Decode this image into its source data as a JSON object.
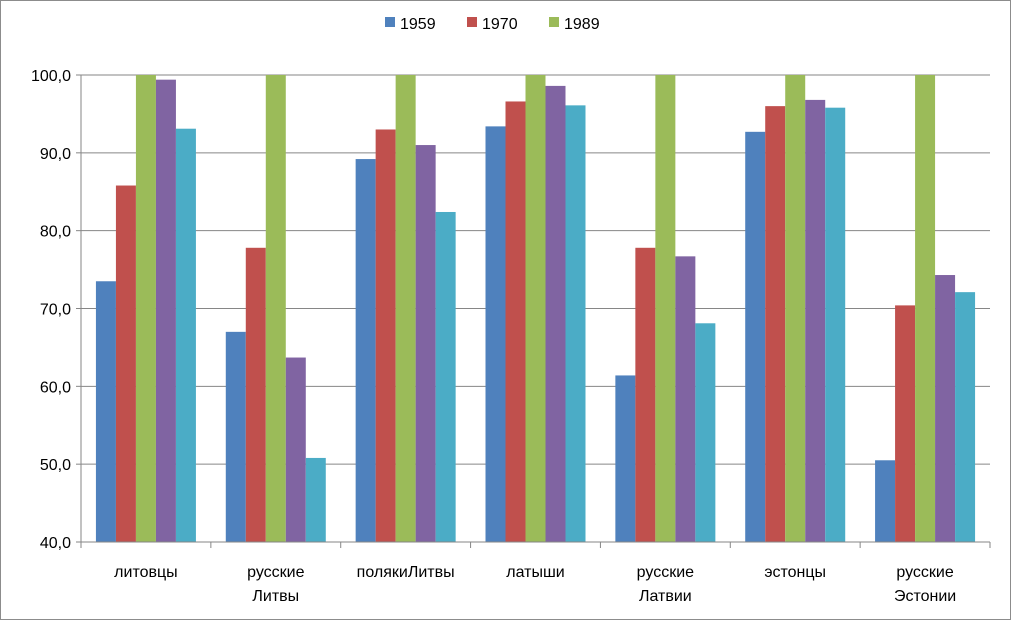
{
  "chart_data": {
    "type": "bar",
    "categories": [
      [
        "литовцы"
      ],
      [
        "русские",
        "Литвы"
      ],
      [
        "полякиЛитвы"
      ],
      [
        "латыши"
      ],
      [
        "русские",
        "Латвии"
      ],
      [
        "эстонцы"
      ],
      [
        "русские",
        "Эстонии"
      ]
    ],
    "series": [
      {
        "name": "1959",
        "color": "#4f81bd",
        "values": [
          73.5,
          67.0,
          89.2,
          93.4,
          61.4,
          92.7,
          50.5
        ]
      },
      {
        "name": "1970",
        "color": "#c0504d",
        "values": [
          85.8,
          77.8,
          93.0,
          96.6,
          77.8,
          96.0,
          70.4
        ]
      },
      {
        "name": "1989",
        "color": "#9bbb59",
        "values": [
          100.0,
          100.0,
          100.0,
          100.0,
          100.0,
          100.0,
          100.0
        ]
      },
      {
        "color": "#8064a2",
        "values": [
          99.4,
          63.7,
          91.0,
          98.6,
          76.7,
          96.8,
          74.3
        ]
      },
      {
        "color": "#4bacc6",
        "values": [
          93.1,
          50.8,
          82.4,
          96.1,
          68.1,
          95.8,
          72.1
        ]
      }
    ],
    "yticks": [
      "40,0",
      "50,0",
      "60,0",
      "70,0",
      "80,0",
      "90,0",
      "100,0"
    ],
    "ylim": [
      40,
      100
    ],
    "grid": true,
    "legend_position": "top"
  }
}
